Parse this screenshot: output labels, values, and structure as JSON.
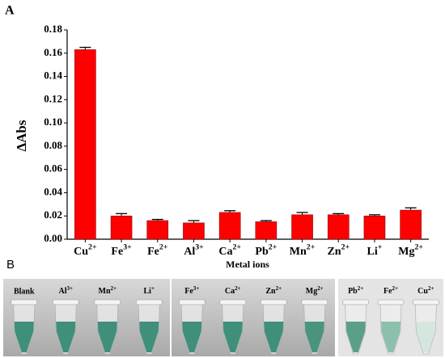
{
  "chart_data": {
    "type": "bar",
    "panel_label": "A",
    "ylabel": "ΔAbs",
    "xlabel": "Metal ions",
    "categories": [
      "Cu2+",
      "Fe3+",
      "Fe2+",
      "Al3+",
      "Ca2+",
      "Pb2+",
      "Mn2+",
      "Zn2+",
      "Li+",
      "Mg2+"
    ],
    "values": [
      0.163,
      0.02,
      0.016,
      0.014,
      0.023,
      0.015,
      0.021,
      0.021,
      0.02,
      0.025
    ],
    "errors": [
      0.002,
      0.002,
      0.001,
      0.002,
      0.0015,
      0.001,
      0.002,
      0.001,
      0.001,
      0.002
    ],
    "color": "#ff0000",
    "ylim": [
      0,
      0.18
    ],
    "yticks": [
      {
        "value": 0,
        "label": "0.00"
      },
      0.02,
      0.04,
      0.06,
      0.08,
      {
        "value": 0.1,
        "label": "0.10"
      },
      0.12,
      0.14,
      0.16,
      0.18
    ]
  },
  "photo": {
    "panel_label": "B",
    "groups": [
      [
        "Blank",
        "Al3+",
        "Mn2+",
        "Li+"
      ],
      [
        "Fe3+",
        "Ca2+",
        "Zn2+",
        "Mg2+"
      ],
      [
        "Pb2+",
        "Fe2+",
        "Cu2+"
      ]
    ]
  }
}
